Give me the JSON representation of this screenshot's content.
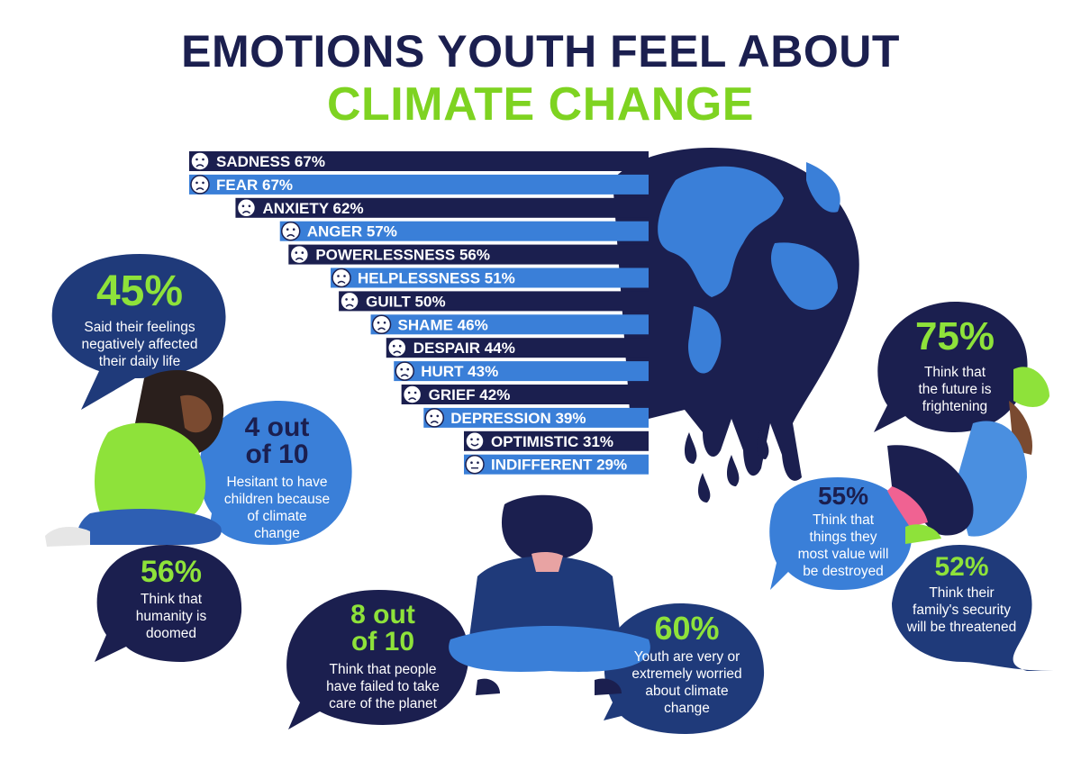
{
  "title": {
    "line1": "EMOTIONS YOUTH FEEL ABOUT",
    "line2": "CLIMATE CHANGE"
  },
  "colors": {
    "navy": "#1b1f4f",
    "dark_blue": "#1f3a7a",
    "mid_blue": "#2e5fb3",
    "light_blue": "#4a8fe0",
    "green": "#8ee23a"
  },
  "chart_data": {
    "type": "bar",
    "categories": [
      "SADNESS",
      "FEAR",
      "ANXIETY",
      "ANGER",
      "POWERLESSNESS",
      "HELPLESSNESS",
      "GUILT",
      "SHAME",
      "DESPAIR",
      "HURT",
      "GRIEF",
      "DEPRESSION",
      "OPTIMISTIC",
      "INDIFFERENT"
    ],
    "values": [
      67,
      67,
      62,
      57,
      56,
      51,
      50,
      46,
      44,
      43,
      42,
      39,
      31,
      29
    ],
    "value_labels": [
      "67%",
      "67%",
      "62%",
      "57%",
      "56%",
      "51%",
      "50%",
      "46%",
      "44%",
      "43%",
      "42%",
      "39%",
      "31%",
      "29%"
    ],
    "icons": [
      "sad-face-icon",
      "fearful-face-icon",
      "anxious-face-icon",
      "angry-face-icon",
      "grimacing-face-icon",
      "weary-face-icon",
      "dizzy-face-icon",
      "flushed-face-icon",
      "despairing-face-icon",
      "frowning-face-icon",
      "crying-face-icon",
      "confounded-face-icon",
      "winking-face-icon",
      "neutral-face-icon"
    ]
  },
  "stats": [
    {
      "value": "45%",
      "text": [
        "Said their feelings",
        "negatively affected",
        "their daily life"
      ]
    },
    {
      "value_lines": [
        "4 out",
        "of 10"
      ],
      "text": [
        "Hesitant to have",
        "children because",
        "of climate",
        "change"
      ]
    },
    {
      "value": "56%",
      "text": [
        "Think that",
        "humanity is",
        "doomed"
      ]
    },
    {
      "value_lines": [
        "8 out",
        "of 10"
      ],
      "text": [
        "Think that people",
        "have failed to take",
        "care of the planet"
      ]
    },
    {
      "value": "60%",
      "text": [
        "Youth are very or",
        "extremely worried",
        "about climate",
        "change"
      ]
    },
    {
      "value": "75%",
      "text": [
        "Think that",
        "the future is",
        "frightening"
      ]
    },
    {
      "value": "55%",
      "text": [
        "Think that",
        "things they",
        "most value will",
        "be destroyed"
      ]
    },
    {
      "value": "52%",
      "text": [
        "Think their",
        "family's security",
        "will be threatened"
      ]
    }
  ]
}
